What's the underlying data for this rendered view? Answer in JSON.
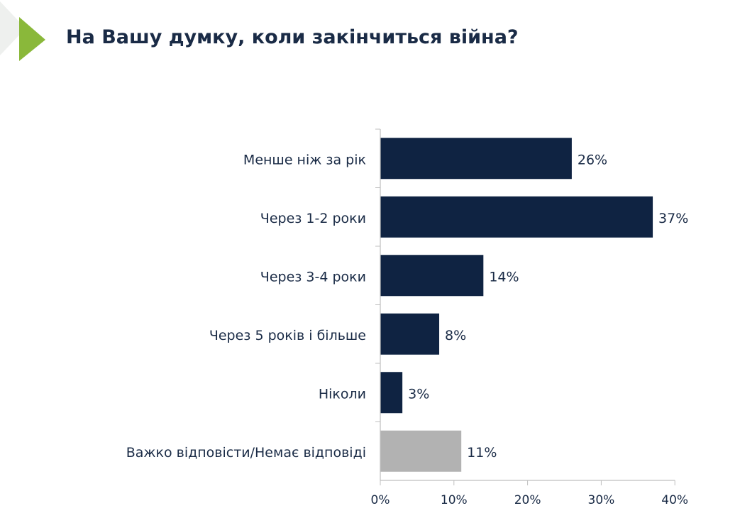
{
  "title": "На Вашу думку, коли закінчиться війна?",
  "colors": {
    "title": "#1a2b46",
    "bar": "#0f2342",
    "bar_muted": "#b2b2b2",
    "accent": "#8ab83a",
    "accent_pale": "#eef0ee",
    "axis": "#bfbfbf",
    "text": "#1a2b46"
  },
  "chart_data": {
    "type": "bar",
    "orientation": "horizontal",
    "title": "",
    "xlabel": "",
    "ylabel": "",
    "categories": [
      "Менше ніж за рік",
      "Через 1-2 роки",
      "Через 3-4 роки",
      "Через 5 років і більше",
      "Ніколи",
      "Важко відповісти/Немає відповіді"
    ],
    "values": [
      26,
      37,
      14,
      8,
      3,
      11
    ],
    "data_labels": [
      "26%",
      "37%",
      "14%",
      "8%",
      "3%",
      "11%"
    ],
    "bar_color_keys": [
      "bar",
      "bar",
      "bar",
      "bar",
      "bar",
      "bar_muted"
    ],
    "xlim": [
      0,
      40
    ],
    "x_ticks": [
      0,
      10,
      20,
      30,
      40
    ],
    "x_tick_labels": [
      "0%",
      "10%",
      "20%",
      "30%",
      "40%"
    ],
    "grid": false,
    "legend": "none"
  }
}
